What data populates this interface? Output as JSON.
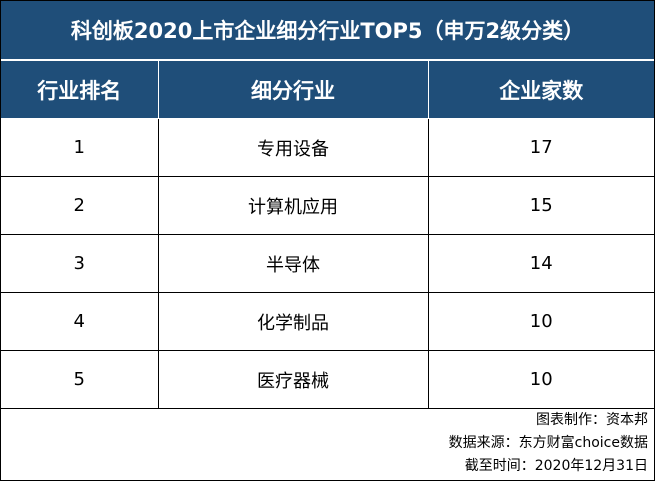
{
  "title": "科创板2020上市企业细分行业TOP5（申万2级分类）",
  "headers": [
    "行业排名",
    "细分行业",
    "企业家数"
  ],
  "rows": [
    {
      "rank": "1",
      "industry": "专用设备",
      "count": "17"
    },
    {
      "rank": "2",
      "industry": "计算机应用",
      "count": "15"
    },
    {
      "rank": "3",
      "industry": "半导体",
      "count": "14"
    },
    {
      "rank": "4",
      "industry": "化学制品",
      "count": "10"
    },
    {
      "rank": "5",
      "industry": "医疗器械",
      "count": "10"
    }
  ],
  "footer": {
    "maker": "图表制作：资本邦",
    "source": "数据来源：东方财富choice数据",
    "date": "截至时间：2020年12月31日"
  },
  "colors": {
    "header_bg": "#1f4e79",
    "header_text": "#ffffff"
  }
}
